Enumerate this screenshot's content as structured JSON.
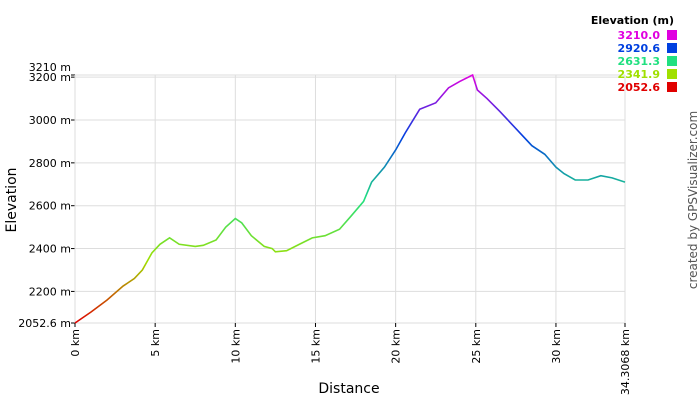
{
  "chart_data": {
    "type": "line",
    "x_label": "Distance",
    "y_label": "Elevation",
    "credit": "created by GPSVisualizer.com",
    "legend_title": "Elevation (m)",
    "color_scale": [
      {
        "value": 3210,
        "label": "3210.0",
        "color": "#e000e0"
      },
      {
        "value": 2920.6,
        "label": "2920.6",
        "color": "#0040e0"
      },
      {
        "value": 2631.3,
        "label": "2631.3",
        "color": "#20e080"
      },
      {
        "value": 2341.9,
        "label": "2341.9",
        "color": "#a0e000"
      },
      {
        "value": 2052.6,
        "label": "2052.6",
        "color": "#e00000"
      }
    ],
    "x": [
      0,
      1,
      2,
      3,
      3.7,
      4.2,
      4.8,
      5.3,
      5.9,
      6.5,
      7.5,
      8,
      8.8,
      9.4,
      10,
      10.4,
      11,
      11.8,
      12.3,
      12.5,
      13.2,
      14,
      14.8,
      15.6,
      16.5,
      17.2,
      18,
      18.5,
      19.3,
      20,
      20.6,
      21.5,
      22.5,
      23.3,
      24,
      24.8,
      25.1,
      25.7,
      26.5,
      27.5,
      28.5,
      29.3,
      30,
      30.5,
      31.2,
      32,
      32.8,
      33.5,
      34.3068
    ],
    "series": [
      {
        "name": "Elevation",
        "values": [
          2052.6,
          2104,
          2160,
          2225,
          2260,
          2300,
          2380,
          2420,
          2450,
          2420,
          2410,
          2415,
          2440,
          2500,
          2540,
          2520,
          2460,
          2410,
          2400,
          2385,
          2390,
          2420,
          2450,
          2460,
          2490,
          2550,
          2620,
          2710,
          2780,
          2860,
          2940,
          3050,
          3080,
          3150,
          3180,
          3210,
          3140,
          3100,
          3040,
          2960,
          2880,
          2840,
          2780,
          2750,
          2720,
          2720,
          2740,
          2730,
          2710
        ]
      }
    ],
    "xlim": [
      0,
      34.3068
    ],
    "xticks": [
      {
        "value": 0,
        "label": "0 km"
      },
      {
        "value": 5,
        "label": "5 km"
      },
      {
        "value": 10,
        "label": "10 km"
      },
      {
        "value": 15,
        "label": "15 km"
      },
      {
        "value": 20,
        "label": "20 km"
      },
      {
        "value": 25,
        "label": "25 km"
      },
      {
        "value": 30,
        "label": "30 km"
      },
      {
        "value": 34.3068,
        "label": "34.3068 km"
      }
    ],
    "ylim": [
      2052.6,
      3210
    ],
    "yticks": [
      {
        "value": 2052.6,
        "label": "2052.6 m"
      },
      {
        "value": 2200,
        "label": "2200 m"
      },
      {
        "value": 2400,
        "label": "2400 m"
      },
      {
        "value": 2600,
        "label": "2600 m"
      },
      {
        "value": 2800,
        "label": "2800 m"
      },
      {
        "value": 3000,
        "label": "3000 m"
      },
      {
        "value": 3200,
        "label": "3200 m"
      },
      {
        "value": 3210,
        "label": "3210 m"
      }
    ],
    "grid": true
  }
}
